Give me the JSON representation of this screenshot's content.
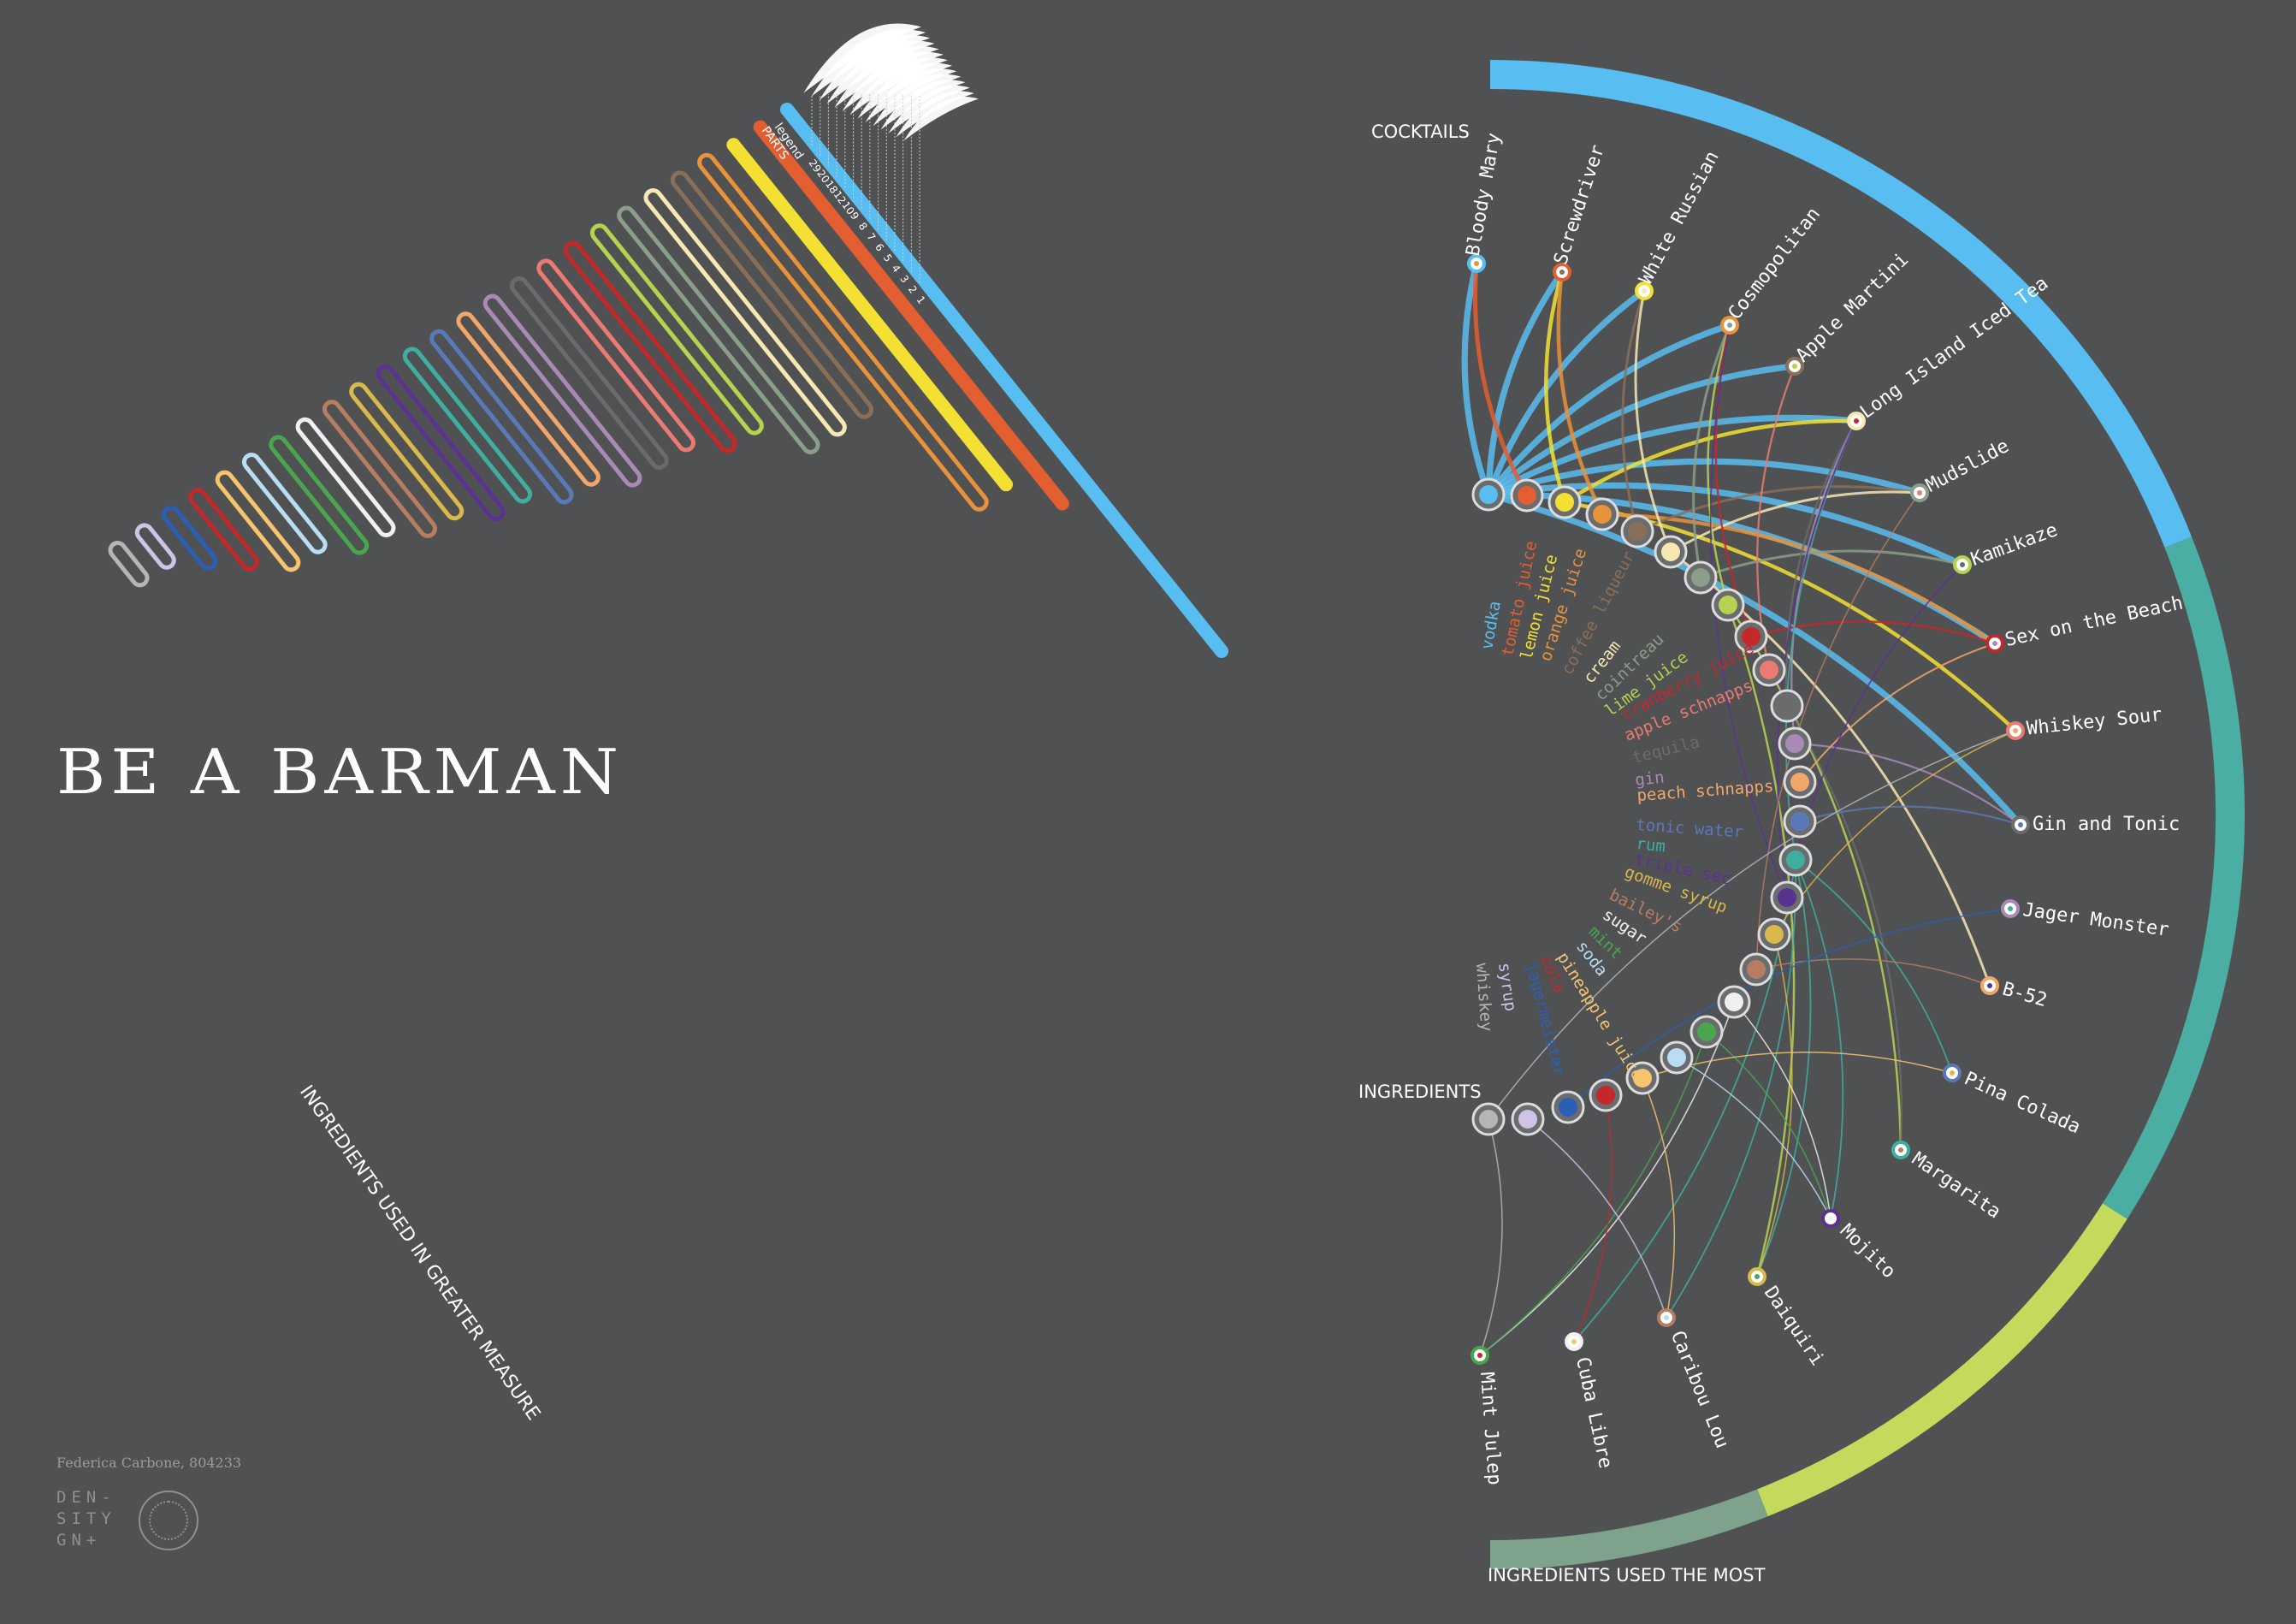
{
  "title": "BE A BARMAN",
  "author": "Federica Carbone, 804233",
  "logo": "DEN-\nSITY\nGN+",
  "left_chart": {
    "axis_label": "INGREDIENTS USED IN GREATER MEASURE",
    "legend_label": "legend\nPARTS",
    "legend_values": [
      "29",
      "20",
      "18",
      "12",
      "10",
      "9",
      "8",
      "7",
      "6",
      "5",
      "4",
      "3",
      "2",
      "1"
    ]
  },
  "right_chart": {
    "cocktails_label": "COCKTAILS",
    "ingredients_label": "INGREDIENTS",
    "arc_label": "INGREDIENTS USED THE MOST"
  },
  "colors": {
    "background": "#505153",
    "vodka": "#58bdf0",
    "teal": "#4aaea2",
    "lime": "#c3da5c",
    "sage": "#7ea28b"
  },
  "chart_data": {
    "type": "diagram",
    "ingredients": [
      {
        "name": "vodka",
        "color": "#58bdf0",
        "parts": 29
      },
      {
        "name": "tomato juice",
        "color": "#e35e30",
        "parts": 20
      },
      {
        "name": "lemon juice",
        "color": "#f3e032",
        "parts": 18
      },
      {
        "name": "orange juice",
        "color": "#e8923a",
        "parts": 18
      },
      {
        "name": "coffee liqueur",
        "color": "#8a6f58",
        "parts": 12
      },
      {
        "name": "cream",
        "color": "#f5e8b3",
        "parts": 12
      },
      {
        "name": "cointreau",
        "color": "#8a9e8a",
        "parts": 12
      },
      {
        "name": "lime juice",
        "color": "#b6d350",
        "parts": 10
      },
      {
        "name": "cranberry juice",
        "color": "#c4282b",
        "parts": 10
      },
      {
        "name": "apple schnapps",
        "color": "#ea7a73",
        "parts": 9
      },
      {
        "name": "tequila",
        "color": "#6a6b6b",
        "parts": 9
      },
      {
        "name": "gin",
        "color": "#a78bb4",
        "parts": 9
      },
      {
        "name": "peach schnapps",
        "color": "#f1a76a",
        "parts": 8
      },
      {
        "name": "tonic water",
        "color": "#5a79b8",
        "parts": 8
      },
      {
        "name": "rum",
        "color": "#3fae9e",
        "parts": 7
      },
      {
        "name": "triple sec",
        "color": "#5a3290",
        "parts": 7
      },
      {
        "name": "gomme syrup",
        "color": "#d9b94a",
        "parts": 6
      },
      {
        "name": "bailey's",
        "color": "#b77d62",
        "parts": 6
      },
      {
        "name": "sugar",
        "color": "#f0f0f0",
        "parts": 5
      },
      {
        "name": "mint",
        "color": "#4aa64e",
        "parts": 5
      },
      {
        "name": "soda",
        "color": "#b9ddf3",
        "parts": 4
      },
      {
        "name": "pineapple juice",
        "color": "#f7c46e",
        "parts": 4
      },
      {
        "name": "cola",
        "color": "#c4282b",
        "parts": 3
      },
      {
        "name": "jagermeister",
        "color": "#2a5fb8",
        "parts": 2
      },
      {
        "name": "syrup",
        "color": "#cfc3e6",
        "parts": 1
      },
      {
        "name": "whiskey",
        "color": "#b5b5b5",
        "parts": 1
      }
    ],
    "cocktails": [
      "Bloody Mary",
      "Screwdriver",
      "White Russian",
      "Cosmopolitan",
      "Apple Martini",
      "Long Island Iced Tea",
      "Mudslide",
      "Kamikaze",
      "Sex on the Beach",
      "Whiskey Sour",
      "Gin and Tonic",
      "Jager Monster",
      "B-52",
      "Pina Colada",
      "Margarita",
      "Mojito",
      "Daiquiri",
      "Caribou Lou",
      "Cuba Libre",
      "Mint Julep"
    ],
    "outer_arc_segments": [
      {
        "color": "#58bdf0",
        "share": 0.38
      },
      {
        "color": "#4aaea2",
        "share": 0.3
      },
      {
        "color": "#c3da5c",
        "share": 0.2
      },
      {
        "color": "#7ea28b",
        "share": 0.12
      }
    ]
  }
}
